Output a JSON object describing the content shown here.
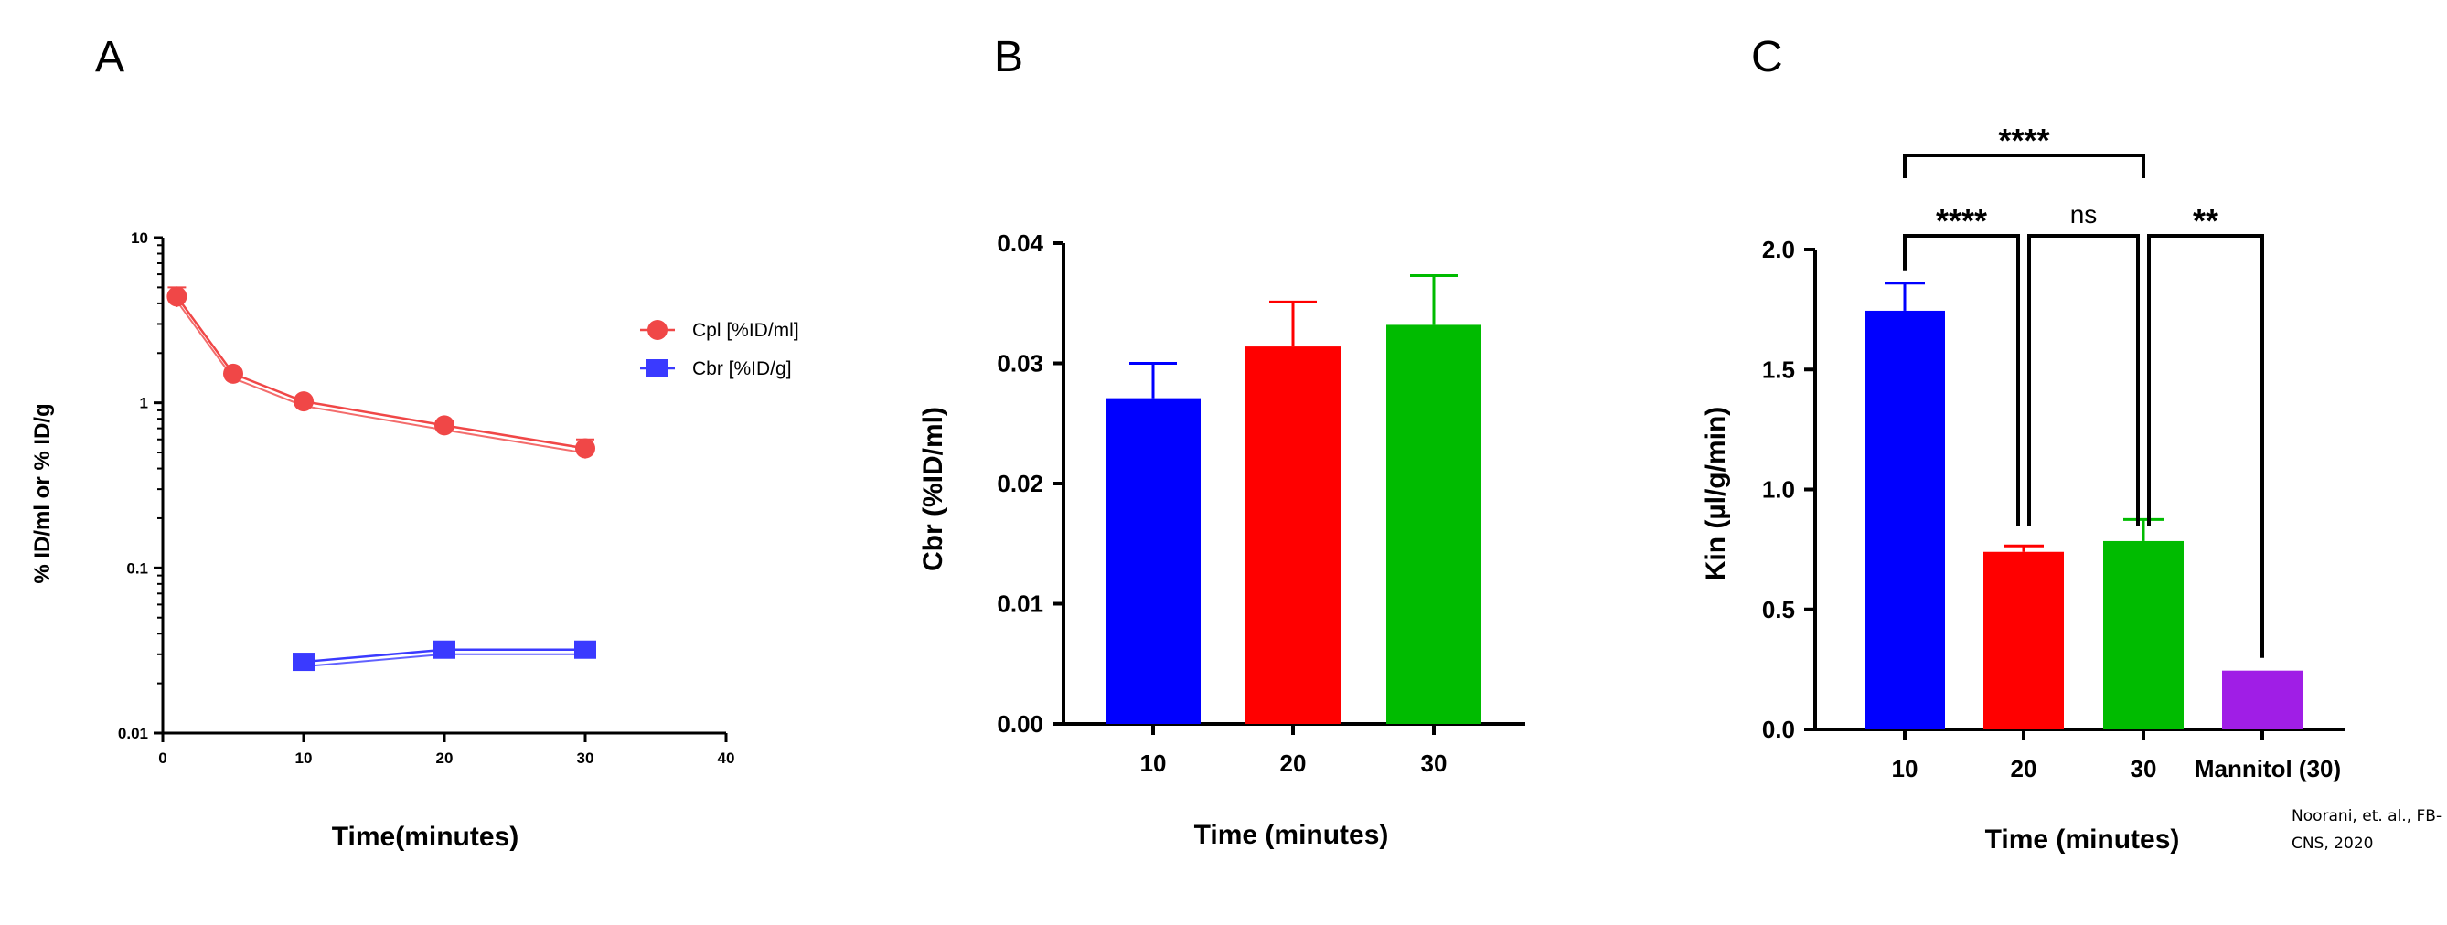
{
  "colors": {
    "cpl": "#f04747",
    "cbr": "#3a3aff",
    "blue": "#0000ff",
    "red": "#ff0000",
    "green": "#00bb00",
    "purple": "#a01ee6"
  },
  "chart_data": [
    {
      "type": "line",
      "panel": "A",
      "xlabel": "Time(minutes)",
      "ylabel": "% ID/ml or % ID/g",
      "xlim": [
        0,
        40
      ],
      "ylim": [
        0.01,
        10
      ],
      "yscale": "log",
      "x_ticks": [
        "0",
        "10",
        "20",
        "30",
        "40"
      ],
      "y_ticks": [
        "0.01",
        "0.1",
        "1",
        "10"
      ],
      "legend_position": "right",
      "series": [
        {
          "name": "Cpl [%ID/ml]",
          "marker": "circle",
          "x": [
            1,
            5,
            10,
            20,
            30
          ],
          "y": [
            4.4,
            1.5,
            1.02,
            0.73,
            0.53
          ],
          "err": [
            0.6,
            0.08,
            0.05,
            0.04,
            0.07
          ]
        },
        {
          "name": "Cbr [%ID/g]",
          "marker": "square",
          "x": [
            10,
            20,
            30
          ],
          "y": [
            0.027,
            0.032,
            0.032
          ],
          "err": [
            0.001,
            0.001,
            0.001
          ]
        }
      ]
    },
    {
      "type": "bar",
      "panel": "B",
      "categories": [
        "10",
        "20",
        "30"
      ],
      "values": [
        0.0271,
        0.0314,
        0.0332
      ],
      "err": [
        0.0029,
        0.0037,
        0.0041
      ],
      "xlabel": "Time (minutes)",
      "ylabel": "Cbr (%ID/ml)",
      "ylim": [
        0,
        0.04
      ],
      "y_ticks": [
        "0.00",
        "0.01",
        "0.02",
        "0.03",
        "0.04"
      ]
    },
    {
      "type": "bar",
      "panel": "C",
      "categories": [
        "10",
        "20",
        "30",
        "Mannitol (30)"
      ],
      "values": [
        1.745,
        0.74,
        0.785,
        0.245
      ],
      "err": [
        0.115,
        0.025,
        0.09,
        0
      ],
      "xlabel": "Time (minutes)",
      "ylabel": "Kin (µl/g/min)",
      "ylim": [
        0,
        2.0
      ],
      "y_ticks": [
        "0.0",
        "0.5",
        "1.0",
        "1.5",
        "2.0"
      ],
      "annotations": [
        {
          "from": "10",
          "to": "30",
          "label": "****"
        },
        {
          "from": "10",
          "to": "20",
          "label": "****"
        },
        {
          "from": "20",
          "to": "30",
          "label": "ns"
        },
        {
          "from": "30",
          "to": "Mannitol (30)",
          "label": "**"
        }
      ]
    }
  ],
  "panels": {
    "a": "A",
    "b": "B",
    "c": "C"
  },
  "citation": {
    "line1": "Noorani, et. al., FB-",
    "line2": "CNS, 2020"
  }
}
